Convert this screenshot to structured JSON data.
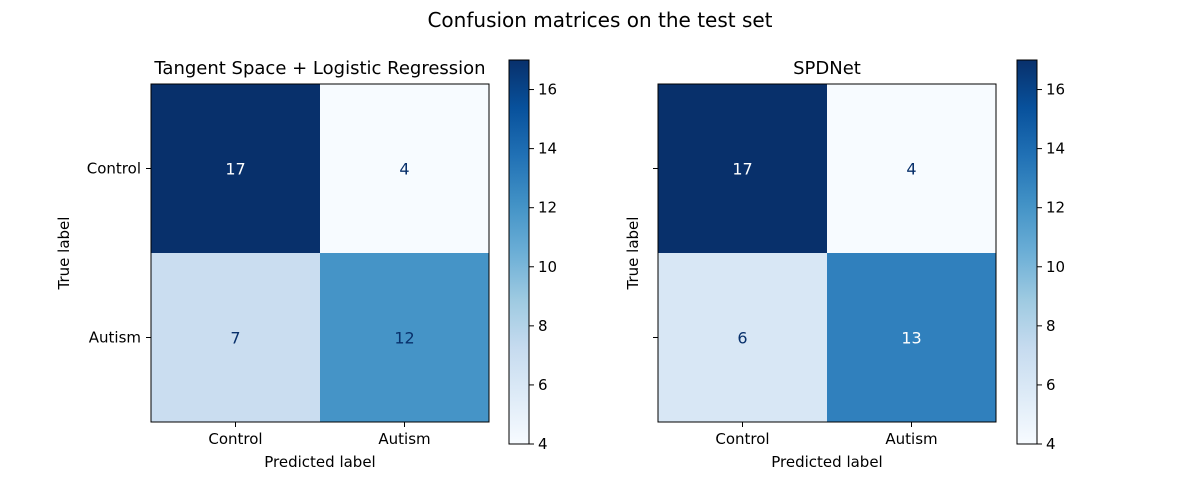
{
  "figure": {
    "title": "Confusion matrices on the test set"
  },
  "chart_data": [
    {
      "type": "heatmap",
      "title": "Tangent Space + Logistic Regression",
      "xlabel": "Predicted label",
      "ylabel": "True label",
      "x_categories": [
        "Control",
        "Autism"
      ],
      "y_categories": [
        "Control",
        "Autism"
      ],
      "matrix": [
        [
          17,
          4
        ],
        [
          7,
          12
        ]
      ],
      "colormap": "Blues",
      "colorbar": {
        "range": [
          4,
          17
        ],
        "ticks": [
          4,
          6,
          8,
          10,
          12,
          14,
          16
        ]
      },
      "show_y_tick_labels": true
    },
    {
      "type": "heatmap",
      "title": "SPDNet",
      "xlabel": "Predicted label",
      "ylabel": "True label",
      "x_categories": [
        "Control",
        "Autism"
      ],
      "y_categories": [
        "Control",
        "Autism"
      ],
      "matrix": [
        [
          17,
          4
        ],
        [
          6,
          13
        ]
      ],
      "colormap": "Blues",
      "colorbar": {
        "range": [
          4,
          17
        ],
        "ticks": [
          4,
          6,
          8,
          10,
          12,
          14,
          16
        ]
      },
      "show_y_tick_labels": false
    }
  ]
}
